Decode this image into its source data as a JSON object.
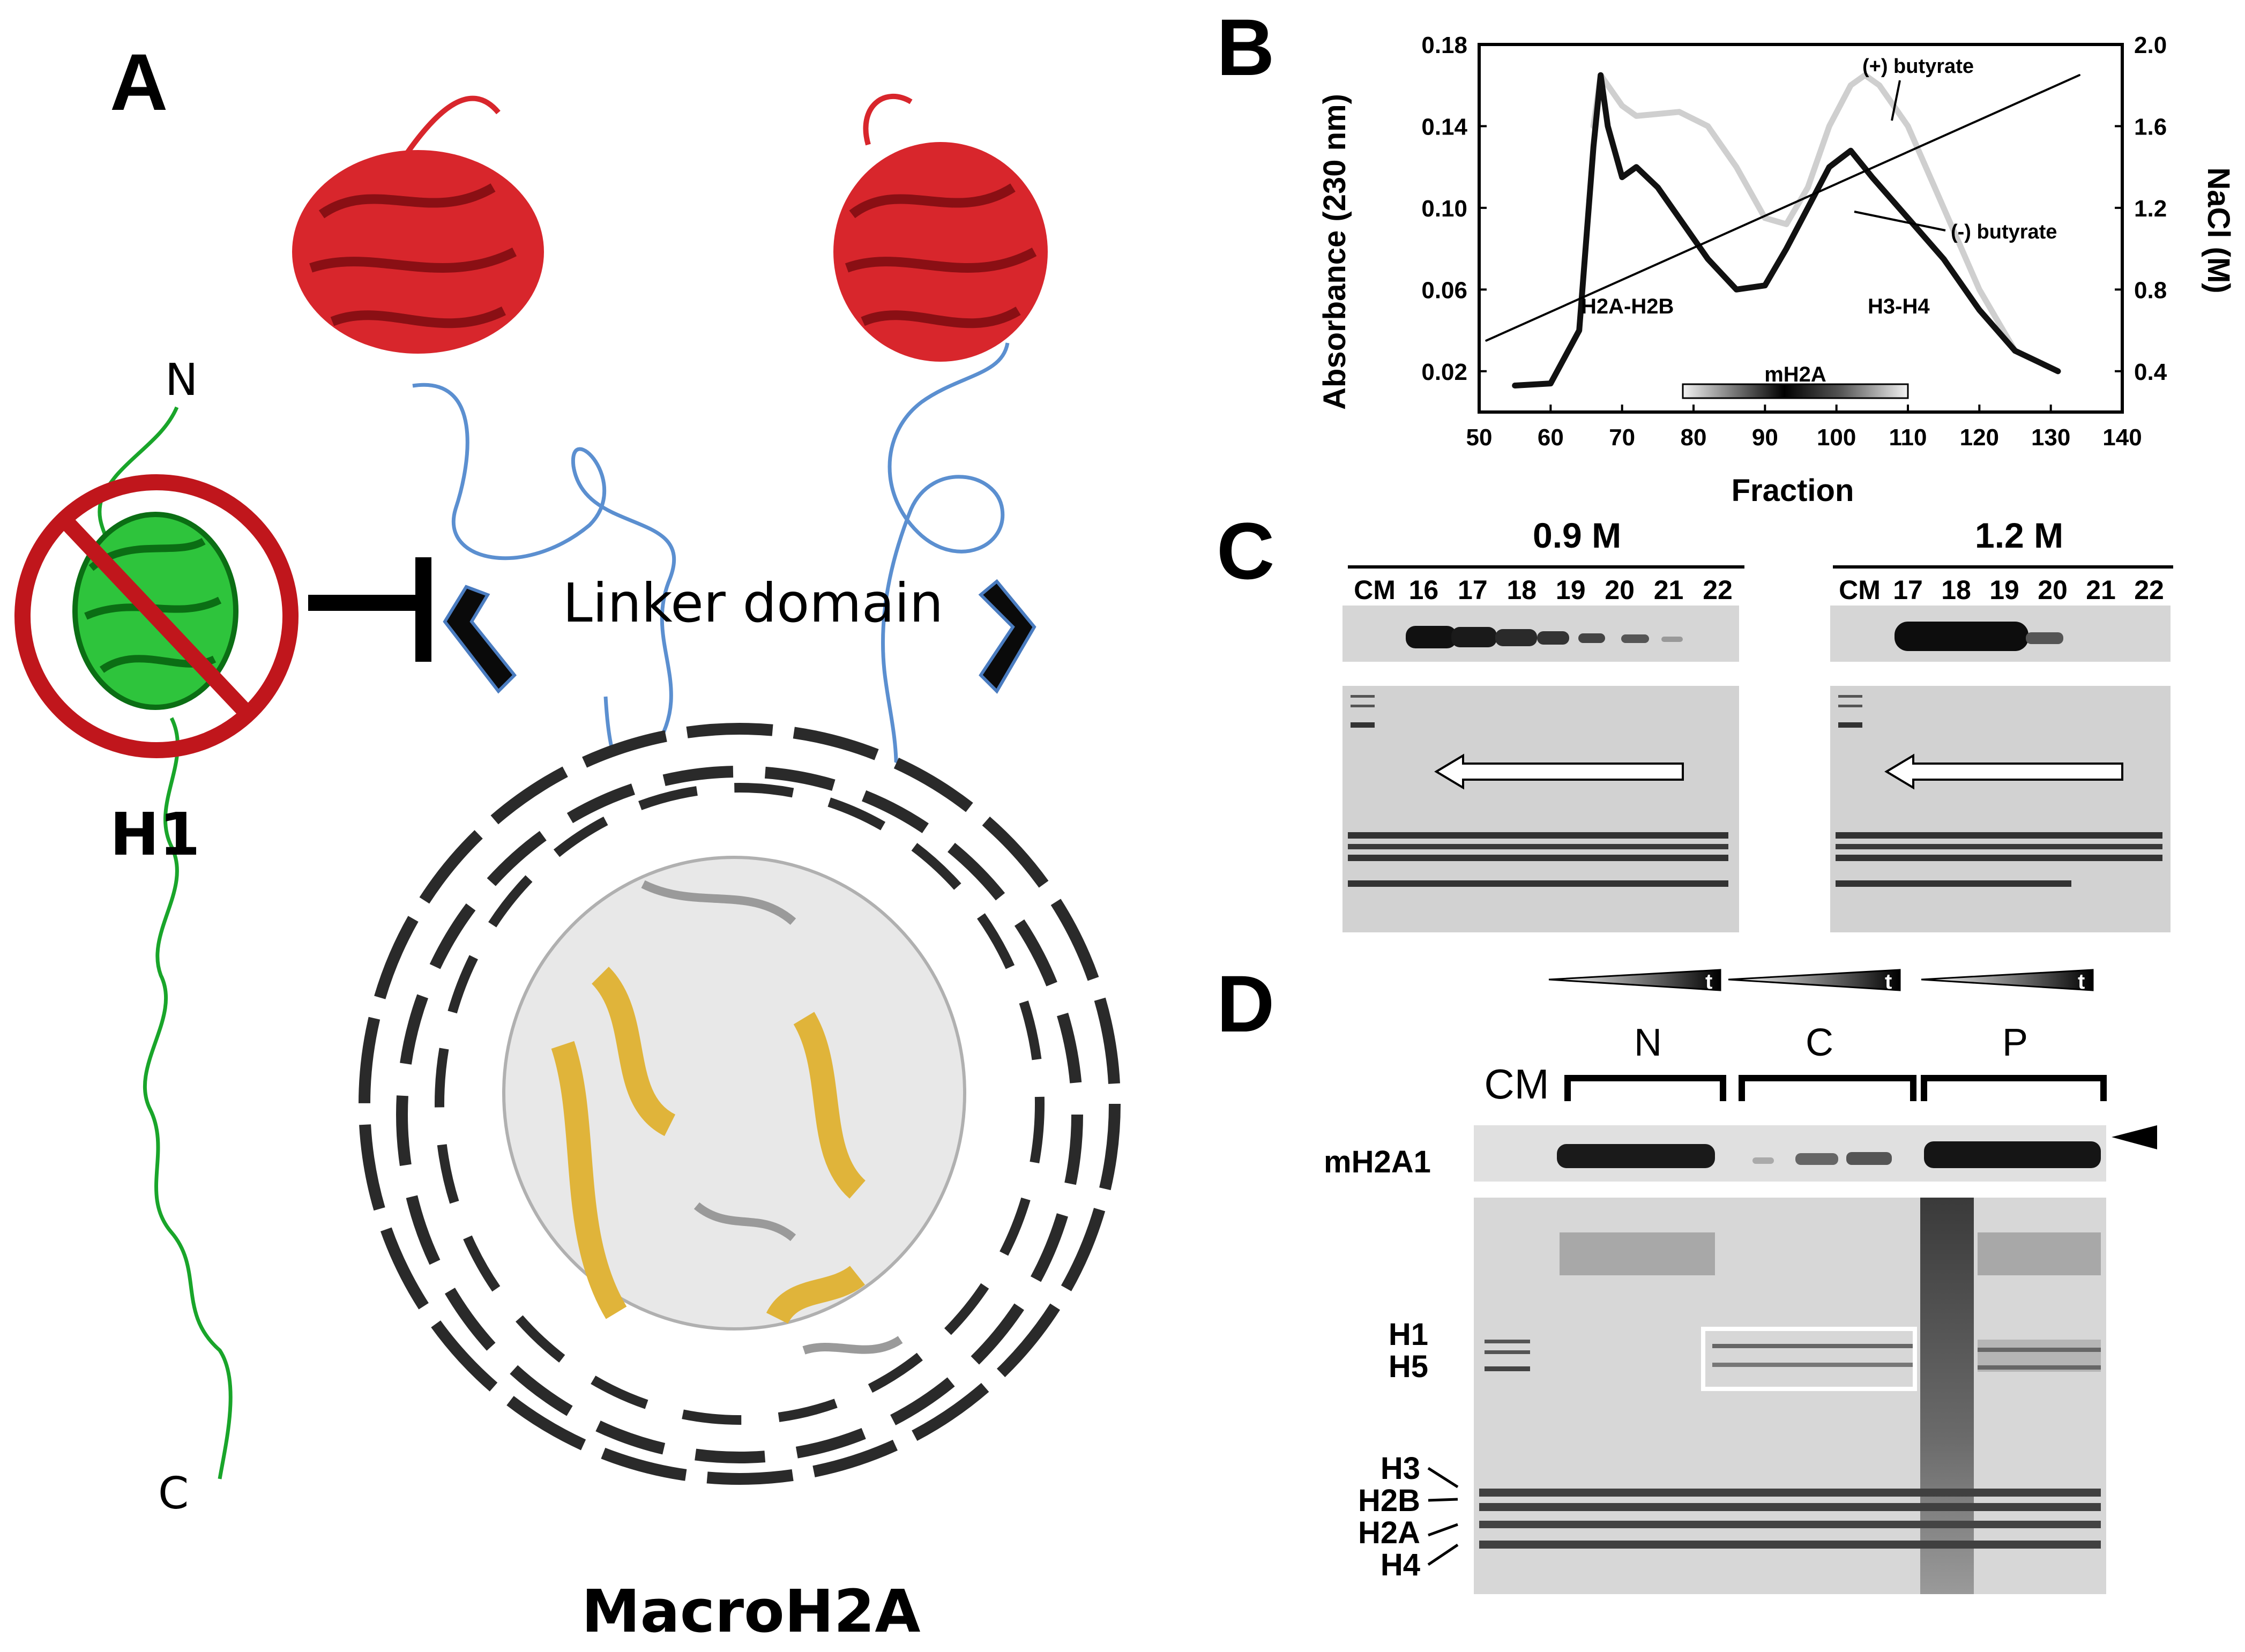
{
  "panelA": {
    "letter": "A",
    "n_terminus": "N",
    "c_terminus": "C",
    "h1_label": "H1",
    "linker_label": "Linker domain",
    "macro_label": "MacroH2A"
  },
  "panelB": {
    "letter": "B",
    "chart_data": {
      "type": "line",
      "xlabel": "Fraction",
      "ylabel": "Absorbance (230 nm)",
      "y2label": "NaCl (M)",
      "xlim": [
        50,
        140
      ],
      "ylim": [
        0,
        0.18
      ],
      "y2lim": [
        0.2,
        2.0
      ],
      "x_ticks": [
        "50",
        "60",
        "70",
        "80",
        "90",
        "100",
        "110",
        "120",
        "130",
        "140"
      ],
      "y_ticks": [
        "0.02",
        "0.06",
        "0.10",
        "0.14",
        "0.18"
      ],
      "y2_ticks": [
        "0.4",
        "0.8",
        "1.2",
        "1.6",
        "2.0"
      ],
      "series": [
        {
          "name": "(-) butyrate",
          "x": [
            55,
            60,
            64,
            66,
            67,
            68,
            70,
            72,
            75,
            78,
            82,
            86,
            90,
            93,
            96,
            99,
            102,
            105,
            110,
            115,
            120,
            125,
            128,
            131
          ],
          "y": [
            0.013,
            0.014,
            0.04,
            0.13,
            0.165,
            0.14,
            0.115,
            0.12,
            0.11,
            0.095,
            0.075,
            0.06,
            0.062,
            0.08,
            0.1,
            0.12,
            0.128,
            0.115,
            0.095,
            0.075,
            0.05,
            0.03,
            0.025,
            0.02
          ]
        },
        {
          "name": "(+) butyrate",
          "x": [
            66,
            67,
            68,
            70,
            72,
            75,
            78,
            82,
            86,
            90,
            93,
            96,
            99,
            102,
            104,
            106,
            110,
            115,
            120,
            125,
            128,
            131
          ],
          "y": [
            0.14,
            0.165,
            0.16,
            0.15,
            0.145,
            0.146,
            0.147,
            0.14,
            0.12,
            0.095,
            0.092,
            0.11,
            0.14,
            0.16,
            0.165,
            0.16,
            0.14,
            0.1,
            0.06,
            0.03,
            0.025,
            0.02
          ]
        },
        {
          "name": "NaCl gradient",
          "axis": "y2",
          "x": [
            51,
            134
          ],
          "y": [
            0.55,
            1.85
          ]
        }
      ],
      "annotations": [
        "(+) butyrate",
        "(-) butyrate",
        "H2A-H2B",
        "H3-H4",
        "mH2A"
      ]
    }
  },
  "panelC": {
    "letter": "C",
    "left_title": "0.9 M",
    "right_title": "1.2 M",
    "left_lanes": [
      "CM",
      "16",
      "17",
      "18",
      "19",
      "20",
      "21",
      "22"
    ],
    "right_lanes": [
      "CM",
      "17",
      "18",
      "19",
      "20",
      "21",
      "22"
    ]
  },
  "panelD": {
    "letter": "D",
    "t_label": "t",
    "groups": [
      "N",
      "C",
      "P"
    ],
    "cm_label": "CM",
    "mh2a1_label": "mH2A1",
    "histones_upper": [
      "H1",
      "H5"
    ],
    "histones_lower": [
      "H3",
      "H2B",
      "H2A",
      "H4"
    ]
  }
}
